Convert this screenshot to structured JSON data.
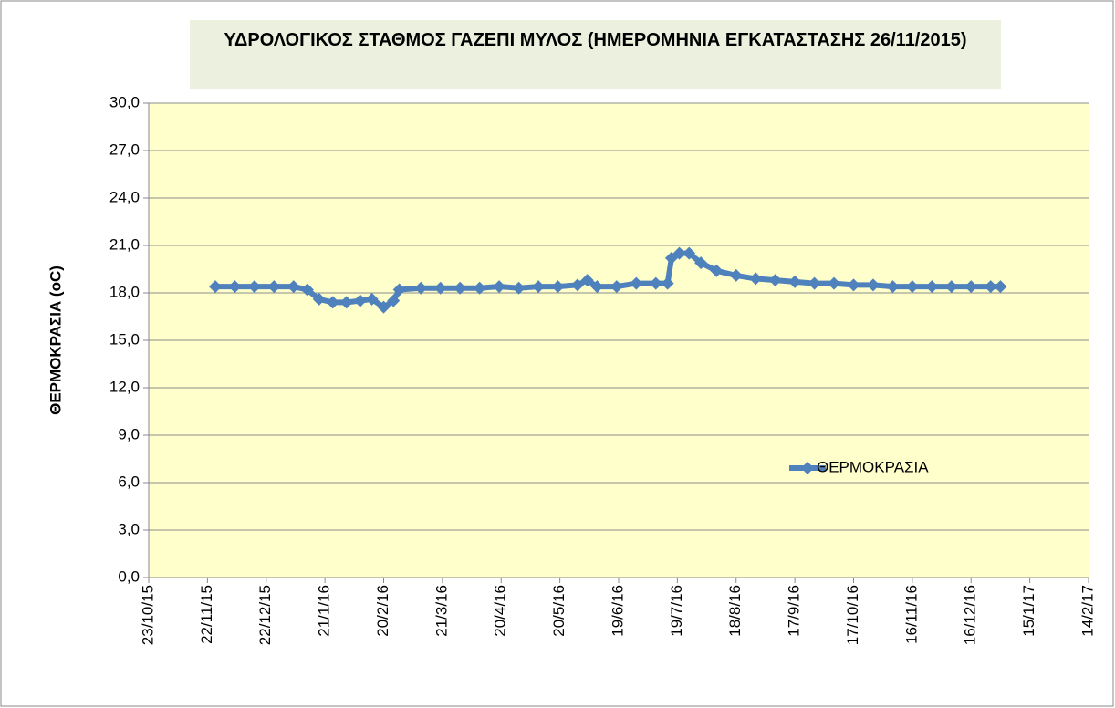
{
  "chart_data": {
    "type": "line",
    "title": "ΥΔΡΟΛΟΓΙΚΟΣ ΣΤΑΘΜΟΣ ΓΑΖΕΠΙ ΜΥΛΟΣ (ΗΜΕΡΟΜΗΝΙΑ ΕΓΚΑΤΑΣΤΑΣΗΣ 26/11/2015)",
    "y_label": "ΘΕΡΜΟΚΡΑΣΙΑ (oC)",
    "x": [
      "26/11/15",
      "6/12/15",
      "16/12/15",
      "26/12/15",
      "5/1/16",
      "12/1/16",
      "18/1/16",
      "25/1/16",
      "1/2/16",
      "8/2/16",
      "14/2/16",
      "20/2/16",
      "25/2/16",
      "28/2/16",
      "10/3/16",
      "20/3/16",
      "30/3/16",
      "9/4/16",
      "19/4/16",
      "29/4/16",
      "9/5/16",
      "19/5/16",
      "29/5/16",
      "3/6/16",
      "8/6/16",
      "18/6/16",
      "28/6/16",
      "8/7/16",
      "14/7/16",
      "16/7/16",
      "20/7/16",
      "25/7/16",
      "31/7/16",
      "8/8/16",
      "18/8/16",
      "28/8/16",
      "7/9/16",
      "17/9/16",
      "27/9/16",
      "7/10/16",
      "17/10/16",
      "27/10/16",
      "6/11/16",
      "16/11/16",
      "26/11/16",
      "6/12/16",
      "16/12/16",
      "26/12/16",
      "31/12/16"
    ],
    "series": [
      {
        "name": "ΘΕΡΜΟΚΡΑΣΙΑ",
        "color": "#4f81bd",
        "values": [
          18.4,
          18.4,
          18.4,
          18.4,
          18.4,
          18.2,
          17.6,
          17.4,
          17.4,
          17.5,
          17.6,
          17.1,
          17.5,
          18.2,
          18.3,
          18.3,
          18.3,
          18.3,
          18.4,
          18.3,
          18.4,
          18.4,
          18.5,
          18.8,
          18.4,
          18.4,
          18.6,
          18.6,
          18.6,
          20.2,
          20.5,
          20.5,
          19.9,
          19.4,
          19.1,
          18.9,
          18.8,
          18.7,
          18.6,
          18.6,
          18.5,
          18.5,
          18.4,
          18.4,
          18.4,
          18.4,
          18.4,
          18.4,
          18.4
        ]
      }
    ],
    "xlim": [
      "23/10/15",
      "14/2/17"
    ],
    "xticks": [
      "23/10/15",
      "22/11/15",
      "22/12/15",
      "21/1/16",
      "20/2/16",
      "21/3/16",
      "20/4/16",
      "20/5/16",
      "19/6/16",
      "19/7/16",
      "18/8/16",
      "17/9/16",
      "17/10/16",
      "16/11/16",
      "16/12/16",
      "15/1/17",
      "14/2/17"
    ],
    "ylim": [
      0,
      30
    ],
    "yticks": [
      {
        "value": 0,
        "label": "0,0"
      },
      {
        "value": 3,
        "label": "3,0"
      },
      {
        "value": 6,
        "label": "6,0"
      },
      {
        "value": 9,
        "label": "9,0"
      },
      {
        "value": 12,
        "label": "12,0"
      },
      {
        "value": 15,
        "label": "15,0"
      },
      {
        "value": 18,
        "label": "18,0"
      },
      {
        "value": 21,
        "label": "21,0"
      },
      {
        "value": 24,
        "label": "24,0"
      },
      {
        "value": 27,
        "label": "27,0"
      },
      {
        "value": 30,
        "label": "30,0"
      }
    ],
    "grid": true,
    "legend": "center-right"
  }
}
